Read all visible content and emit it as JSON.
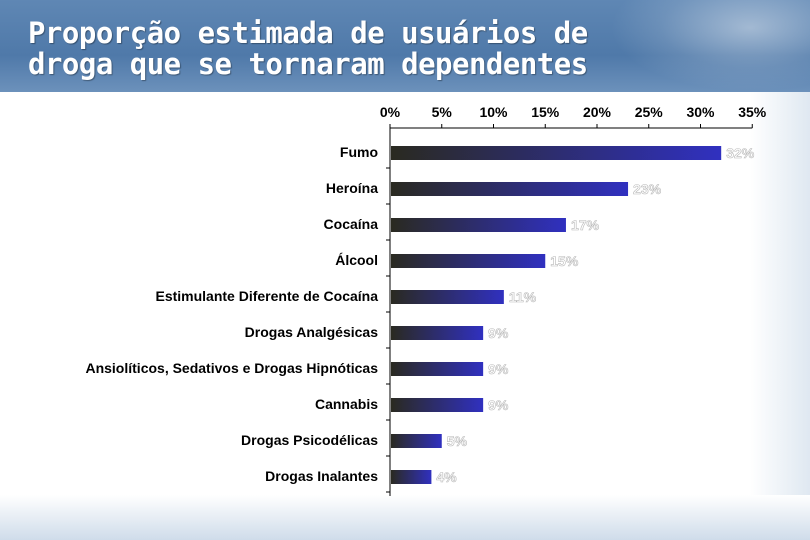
{
  "slide": {
    "title": "Proporção estimada de usuários de droga que se tornaram dependentes"
  },
  "colors": {
    "header_blue": "#5a82b0",
    "bar_start": "#2a2a20",
    "bar_end": "#3030c0",
    "axis": "#000000"
  },
  "chart_data": {
    "type": "bar",
    "orientation": "horizontal",
    "title": "",
    "xlabel": "",
    "ylabel": "",
    "xlim": [
      0,
      35
    ],
    "tick_values": [
      0,
      5,
      10,
      15,
      20,
      25,
      30,
      35
    ],
    "tick_labels": [
      "0%",
      "5%",
      "10%",
      "15%",
      "20%",
      "25%",
      "30%",
      "35%"
    ],
    "axis_position": "top",
    "grid": false,
    "categories": [
      "Fumo",
      "Heroína",
      "Cocaína",
      "Álcool",
      "Estimulante Diferente de Cocaína",
      "Drogas Analgésicas",
      "Ansiolíticos, Sedativos e Drogas Hipnóticas",
      "Cannabis",
      "Drogas Psicodélicas",
      "Drogas Inalantes"
    ],
    "values": [
      32,
      23,
      17,
      15,
      11,
      9,
      9,
      9,
      5,
      4
    ],
    "data_labels": [
      "32%",
      "23%",
      "17%",
      "15%",
      "11%",
      "9%",
      "9%",
      "9%",
      "5%",
      "4%"
    ]
  }
}
